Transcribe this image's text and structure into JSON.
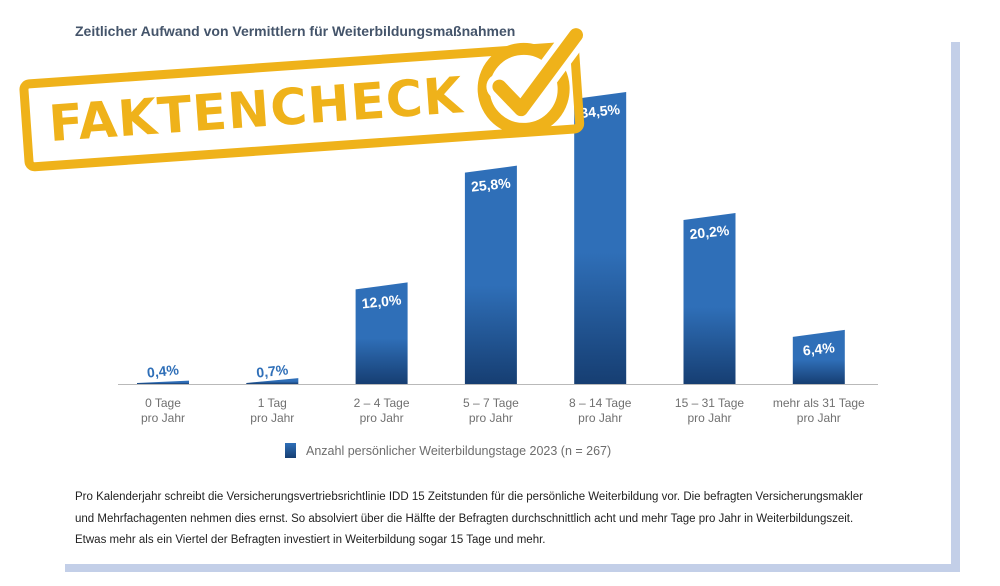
{
  "title": "Zeitlicher Aufwand von Vermittlern für Weiterbildungsmaßnahmen",
  "stamp": {
    "text": "FAKTENCHECK",
    "color": "#efb21a"
  },
  "chart_data": {
    "type": "bar",
    "categories": [
      [
        "0 Tage",
        "pro Jahr"
      ],
      [
        "1 Tag",
        "pro Jahr"
      ],
      [
        "2 – 4 Tage",
        "pro Jahr"
      ],
      [
        "5 – 7 Tage",
        "pro Jahr"
      ],
      [
        "8 – 14 Tage",
        "pro Jahr"
      ],
      [
        "15 – 31 Tage",
        "pro Jahr"
      ],
      [
        "mehr als 31 Tage",
        "pro Jahr"
      ]
    ],
    "values": [
      0.4,
      0.7,
      12.0,
      25.8,
      34.5,
      20.2,
      6.4
    ],
    "data_labels": [
      "0,4%",
      "0,7%",
      "12,0%",
      "25,8%",
      "34,5%",
      "20,2%",
      "6,4%"
    ],
    "series": [
      {
        "name": "Anzahl persönlicher Weiterbildungstage 2023 (n = 267)"
      }
    ],
    "ylim": [
      0,
      34.5
    ],
    "grid": false,
    "legend_position": "bottom",
    "bar_color_top": "#2f6fb8",
    "bar_color_bottom": "#163e72"
  },
  "footnote": [
    "Pro Kalenderjahr schreibt die Versicherungsvertriebsrichtlinie IDD 15 Zeitstunden für die persönliche Weiterbildung vor. Die befragten Versicherungsmakler",
    "und Mehrfachagenten nehmen dies ernst. So absolviert über die Hälfte der Befragten durchschnittlich acht und mehr Tage pro Jahr in Weiterbildungszeit.",
    "Etwas mehr als ein Viertel der Befragten investiert in Weiterbildung sogar 15 Tage und mehr."
  ]
}
